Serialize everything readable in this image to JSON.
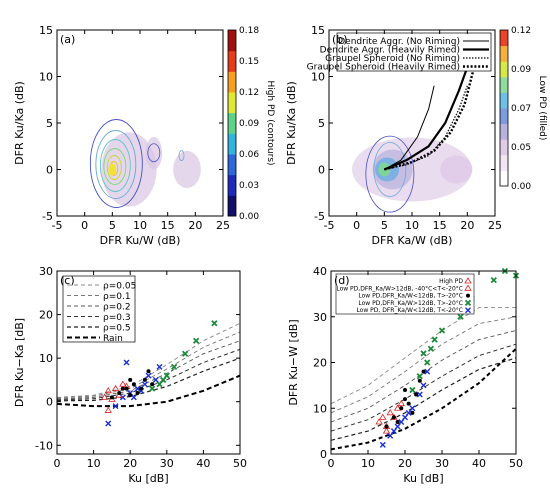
{
  "figure": {
    "panels": [
      "(a)",
      "(b)",
      "(c)",
      "(d)"
    ]
  },
  "chart_data": [
    {
      "type": "heatmap",
      "panel": "(a)",
      "xlabel": "DFR Ku/W (dB)",
      "ylabel": "DFR Ku/Ka (dB)",
      "xlim": [
        -5,
        25
      ],
      "ylim": [
        -5,
        15
      ],
      "xticks": [
        "-5",
        "0",
        "5",
        "10",
        "15",
        "20",
        "25"
      ],
      "yticks": [
        "-5",
        "0",
        "5",
        "10",
        "15"
      ],
      "colorbar": {
        "title": "High PD (contours)",
        "ticks": [
          "0.00",
          "0.03",
          "0.06",
          "0.09",
          "0.12",
          "0.15",
          "0.18"
        ],
        "colors": [
          "#10106b",
          "#1f2ab8",
          "#2f68d8",
          "#33b4dd",
          "#5fd28a",
          "#e0e834",
          "#f5a020",
          "#e43b1a",
          "#a01010"
        ]
      },
      "filled_regions": [
        {
          "x": [
            3,
            13
          ],
          "y": [
            -4,
            4
          ],
          "level": 0.03
        },
        {
          "x": [
            11,
            14
          ],
          "y": [
            0,
            3.5
          ],
          "level": 0.03
        },
        {
          "x": [
            16,
            21
          ],
          "y": [
            -2,
            2
          ],
          "level": 0.02
        }
      ],
      "contour_peak": {
        "x": 5,
        "y": 0
      },
      "contour_levels": [
        0.03,
        0.06,
        0.09,
        0.12,
        0.15,
        0.18
      ]
    },
    {
      "type": "heatmap",
      "panel": "(b)",
      "xlabel": "DFR Ka/W (dB)",
      "ylabel": "DFR Ku/Ka (dB)",
      "xlim": [
        -5,
        25
      ],
      "ylim": [
        -5,
        15
      ],
      "xticks": [
        "-5",
        "0",
        "5",
        "10",
        "15",
        "20",
        "25"
      ],
      "yticks": [
        "-5",
        "0",
        "5",
        "10",
        "15"
      ],
      "colorbar": {
        "title": "Low PD (filled)",
        "ticks": [
          "0.00",
          "0.05",
          "0.07",
          "0.09",
          "0.12"
        ],
        "colors": [
          "#ffffff",
          "#f3e6f3",
          "#e1cbe6",
          "#b7b3dc",
          "#7f9be0",
          "#6ec0e6",
          "#8fdc9e",
          "#d6e84a",
          "#f5b040",
          "#e8442a"
        ]
      },
      "legend": [
        "Dendrite Aggr. (No Riming)",
        "Dendrite Aggr. (Heavily Rimed)",
        "Graupel Spheroid (No Riming)",
        "Graupel Spheroid (Heavily Rimed)"
      ],
      "model_curves": [
        {
          "name": "Dendrite Aggr. (No Riming)",
          "style": "solid-thin",
          "points": [
            [
              5,
              0
            ],
            [
              8,
              1
            ],
            [
              11,
              3.5
            ],
            [
              13,
              6.5
            ],
            [
              14,
              9
            ]
          ]
        },
        {
          "name": "Dendrite Aggr. (Heavily Rimed)",
          "style": "solid-thick",
          "points": [
            [
              5,
              0
            ],
            [
              9,
              1
            ],
            [
              13,
              2.5
            ],
            [
              16,
              5
            ],
            [
              18.5,
              8.5
            ],
            [
              20,
              11
            ]
          ]
        },
        {
          "name": "Graupel Spheroid (No Riming)",
          "style": "dotted-thin",
          "points": [
            [
              5,
              0
            ],
            [
              9,
              0.5
            ],
            [
              13,
              1.5
            ],
            [
              16,
              3.5
            ],
            [
              18.5,
              6.5
            ],
            [
              20,
              9
            ]
          ]
        },
        {
          "name": "Graupel Spheroid (Heavily Rimed)",
          "style": "dotted-thick",
          "points": [
            [
              5,
              0
            ],
            [
              10,
              0.8
            ],
            [
              14,
              2
            ],
            [
              17,
              4
            ],
            [
              19.5,
              7
            ],
            [
              21,
              10.5
            ]
          ]
        }
      ]
    },
    {
      "type": "scatter",
      "panel": "(c)",
      "xlabel": "Ku [dB]",
      "ylabel": "DFR Ku−Ka [dB]",
      "xlim": [
        0,
        50
      ],
      "ylim": [
        -12,
        30
      ],
      "xticks": [
        "0",
        "10",
        "20",
        "30",
        "40",
        "50"
      ],
      "yticks": [
        "-10",
        "0",
        "10",
        "20",
        "30"
      ],
      "legend": [
        "ρ=0.05",
        "ρ=0.1",
        "ρ=0.2",
        "ρ=0.3",
        "ρ=0.5",
        "Rain"
      ],
      "curves": [
        {
          "rho": 0.05,
          "points": [
            [
              0,
              1
            ],
            [
              10,
              1.5
            ],
            [
              20,
              3.5
            ],
            [
              30,
              8.5
            ],
            [
              40,
              14
            ],
            [
              50,
              18
            ]
          ]
        },
        {
          "rho": 0.1,
          "points": [
            [
              0,
              0.8
            ],
            [
              10,
              1.3
            ],
            [
              20,
              3
            ],
            [
              30,
              7.5
            ],
            [
              40,
              12.5
            ],
            [
              50,
              16
            ]
          ]
        },
        {
          "rho": 0.2,
          "points": [
            [
              0,
              0.6
            ],
            [
              10,
              1
            ],
            [
              20,
              2.5
            ],
            [
              30,
              6.5
            ],
            [
              40,
              11
            ],
            [
              50,
              14
            ]
          ]
        },
        {
          "rho": 0.3,
          "points": [
            [
              0,
              0.4
            ],
            [
              10,
              0.7
            ],
            [
              20,
              2
            ],
            [
              30,
              5
            ],
            [
              40,
              9
            ],
            [
              50,
              12
            ]
          ]
        },
        {
          "rho": 0.5,
          "points": [
            [
              0,
              0.2
            ],
            [
              10,
              0.3
            ],
            [
              20,
              1.2
            ],
            [
              30,
              3.5
            ],
            [
              40,
              7
            ],
            [
              50,
              10
            ]
          ]
        },
        {
          "rho": "Rain",
          "points": [
            [
              0,
              -0.5
            ],
            [
              10,
              -1
            ],
            [
              20,
              -1
            ],
            [
              30,
              0
            ],
            [
              40,
              2.5
            ],
            [
              50,
              6
            ]
          ]
        }
      ],
      "points": {
        "black": [
          [
            15,
            1
          ],
          [
            17,
            2
          ],
          [
            19,
            3
          ],
          [
            20,
            5
          ],
          [
            21,
            4
          ],
          [
            22,
            2
          ],
          [
            23,
            3
          ],
          [
            24,
            5
          ],
          [
            25,
            7
          ],
          [
            26,
            4
          ],
          [
            18,
            3
          ],
          [
            20,
            1.5
          ]
        ],
        "red": [
          [
            13,
            1
          ],
          [
            14,
            2.5
          ],
          [
            15,
            0.5
          ],
          [
            16,
            3
          ],
          [
            17,
            1.5
          ],
          [
            18,
            4
          ],
          [
            19,
            3.5
          ],
          [
            14,
            -2
          ]
        ],
        "blue": [
          [
            14,
            -5
          ],
          [
            16,
            -1
          ],
          [
            18,
            1
          ],
          [
            20,
            2
          ],
          [
            22,
            3
          ],
          [
            24,
            4
          ],
          [
            25,
            6
          ],
          [
            27,
            5
          ],
          [
            28,
            8
          ],
          [
            21,
            1
          ],
          [
            23,
            2.5
          ],
          [
            19,
            9
          ]
        ],
        "green": [
          [
            26,
            3
          ],
          [
            28,
            4
          ],
          [
            30,
            6
          ],
          [
            32,
            8
          ],
          [
            35,
            11
          ],
          [
            38,
            14
          ],
          [
            43,
            18
          ],
          [
            29,
            5
          ]
        ]
      }
    },
    {
      "type": "scatter",
      "panel": "(d)",
      "xlabel": "Ku [dB]",
      "ylabel": "DFR Ku−W [dB]",
      "xlim": [
        0,
        50
      ],
      "ylim": [
        0,
        40
      ],
      "xticks": [
        "0",
        "10",
        "20",
        "30",
        "40",
        "50"
      ],
      "yticks": [
        "0",
        "10",
        "20",
        "30",
        "40"
      ],
      "legend": [
        "High PD",
        "Low PD,DFR_Ka/W>12dB, -40°C<T<-20°C",
        "Low PD,DFR_Ka/W<12dB, T>-20°C",
        "Low PD,DFR_Ka/W>12dB, T>-20°C",
        "Low PD, DFR_Ka/W<12dB, T<-20°C"
      ],
      "curves": [
        {
          "points": [
            [
              0,
              11
            ],
            [
              10,
              15
            ],
            [
              20,
              21
            ],
            [
              30,
              27
            ],
            [
              40,
              32
            ],
            [
              50,
              32
            ]
          ]
        },
        {
          "points": [
            [
              0,
              9
            ],
            [
              10,
              12.5
            ],
            [
              20,
              18
            ],
            [
              30,
              24
            ],
            [
              40,
              28.5
            ],
            [
              50,
              30
            ]
          ]
        },
        {
          "points": [
            [
              0,
              7
            ],
            [
              10,
              10
            ],
            [
              20,
              15
            ],
            [
              30,
              20.5
            ],
            [
              40,
              25
            ],
            [
              50,
              27
            ]
          ]
        },
        {
          "points": [
            [
              0,
              5
            ],
            [
              10,
              7.5
            ],
            [
              20,
              12
            ],
            [
              30,
              17
            ],
            [
              40,
              21.5
            ],
            [
              50,
              24
            ]
          ]
        },
        {
          "points": [
            [
              0,
              3
            ],
            [
              10,
              5
            ],
            [
              20,
              9
            ],
            [
              30,
              14
            ],
            [
              40,
              18.5
            ],
            [
              50,
              21
            ]
          ]
        },
        {
          "points": [
            [
              0,
              1
            ],
            [
              10,
              2.5
            ],
            [
              20,
              5.5
            ],
            [
              30,
              10
            ],
            [
              40,
              15.5
            ],
            [
              50,
              23
            ]
          ]
        }
      ],
      "points": {
        "black": [
          [
            15,
            6
          ],
          [
            17,
            8
          ],
          [
            19,
            10
          ],
          [
            20,
            12
          ],
          [
            21,
            11
          ],
          [
            22,
            9
          ],
          [
            23,
            13
          ],
          [
            24,
            16
          ],
          [
            25,
            18
          ],
          [
            18,
            7
          ],
          [
            20,
            14
          ]
        ],
        "red": [
          [
            13,
            7
          ],
          [
            14,
            8
          ],
          [
            15,
            6
          ],
          [
            16,
            9
          ],
          [
            17,
            8
          ],
          [
            18,
            10
          ],
          [
            19,
            11
          ],
          [
            15,
            5
          ]
        ],
        "blue": [
          [
            14,
            2
          ],
          [
            16,
            4
          ],
          [
            17,
            5
          ],
          [
            18,
            6
          ],
          [
            19,
            7
          ],
          [
            20,
            8
          ],
          [
            22,
            10
          ],
          [
            24,
            13
          ],
          [
            25,
            15
          ],
          [
            26,
            18
          ],
          [
            21,
            9
          ]
        ],
        "green": [
          [
            22,
            14
          ],
          [
            24,
            17
          ],
          [
            26,
            20
          ],
          [
            27,
            23
          ],
          [
            28,
            25
          ],
          [
            30,
            27
          ],
          [
            35,
            30
          ],
          [
            38,
            34
          ],
          [
            44,
            38
          ],
          [
            47,
            40
          ],
          [
            50,
            39
          ],
          [
            25,
            22
          ]
        ]
      }
    }
  ]
}
